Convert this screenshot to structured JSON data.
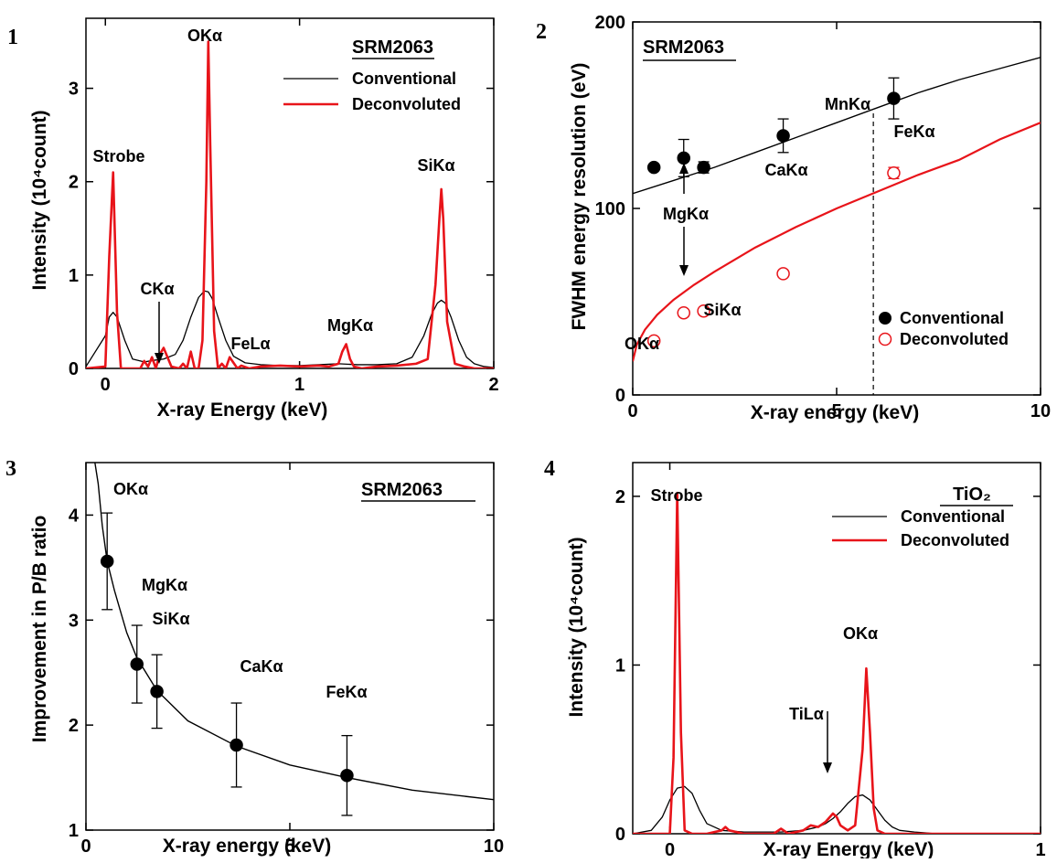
{
  "colors": {
    "conventional": "#000000",
    "deconvoluted": "#e8141a"
  },
  "chart_data": [
    {
      "panel_label": "1",
      "type": "line",
      "sample_title": "SRM2063",
      "xlabel": "X-ray Energy (keV)",
      "ylabel": "Intensity (10⁴count)",
      "xlim": [
        -0.1,
        2.0
      ],
      "ylim": [
        0,
        3.75
      ],
      "xticks": [
        0,
        1,
        2
      ],
      "yticks": [
        0,
        1,
        2,
        3
      ],
      "grid": false,
      "legend": {
        "placement": "top-right",
        "entries": [
          "Conventional",
          "Deconvoluted"
        ]
      },
      "series": [
        {
          "name": "Conventional",
          "x": [
            -0.1,
            0.0,
            0.02,
            0.04,
            0.06,
            0.1,
            0.14,
            0.2,
            0.26,
            0.3,
            0.36,
            0.4,
            0.44,
            0.48,
            0.51,
            0.53,
            0.55,
            0.58,
            0.62,
            0.66,
            0.72,
            0.8,
            0.9,
            1.0,
            1.1,
            1.2,
            1.3,
            1.4,
            1.5,
            1.58,
            1.64,
            1.68,
            1.71,
            1.73,
            1.75,
            1.78,
            1.82,
            1.86,
            1.9,
            1.95,
            2.0
          ],
          "y": [
            0.02,
            0.35,
            0.55,
            0.6,
            0.55,
            0.3,
            0.1,
            0.07,
            0.09,
            0.1,
            0.15,
            0.3,
            0.55,
            0.76,
            0.83,
            0.82,
            0.75,
            0.55,
            0.3,
            0.13,
            0.06,
            0.04,
            0.03,
            0.03,
            0.04,
            0.05,
            0.04,
            0.04,
            0.05,
            0.12,
            0.35,
            0.58,
            0.7,
            0.73,
            0.7,
            0.55,
            0.3,
            0.12,
            0.05,
            0.02,
            0.01
          ]
        },
        {
          "name": "Deconvoluted",
          "x": [
            -0.1,
            0.0,
            0.02,
            0.04,
            0.06,
            0.08,
            0.12,
            0.18,
            0.2,
            0.22,
            0.24,
            0.26,
            0.28,
            0.3,
            0.34,
            0.38,
            0.4,
            0.42,
            0.44,
            0.46,
            0.48,
            0.5,
            0.52,
            0.53,
            0.54,
            0.56,
            0.58,
            0.6,
            0.62,
            0.64,
            0.66,
            0.68,
            0.7,
            0.74,
            0.8,
            0.9,
            1.0,
            1.1,
            1.15,
            1.2,
            1.22,
            1.24,
            1.26,
            1.28,
            1.32,
            1.4,
            1.5,
            1.6,
            1.66,
            1.7,
            1.72,
            1.73,
            1.74,
            1.76,
            1.8,
            1.85,
            1.9,
            2.0
          ],
          "y": [
            0.0,
            0.02,
            1.2,
            2.1,
            0.6,
            0.0,
            0.0,
            0.0,
            0.08,
            0.02,
            0.12,
            0.0,
            0.15,
            0.22,
            0.02,
            0.0,
            0.05,
            0.0,
            0.18,
            0.0,
            0.0,
            0.3,
            2.0,
            3.5,
            2.4,
            0.4,
            0.0,
            0.05,
            0.0,
            0.12,
            0.06,
            0.0,
            0.03,
            0.0,
            0.02,
            0.03,
            0.02,
            0.03,
            0.02,
            0.05,
            0.18,
            0.26,
            0.1,
            0.02,
            0.0,
            0.02,
            0.03,
            0.05,
            0.1,
            0.9,
            1.6,
            1.92,
            1.6,
            0.5,
            0.05,
            0.02,
            0.0,
            0.0
          ]
        }
      ],
      "annotations": [
        "Strobe",
        "OKα",
        "CKα",
        "FeLα",
        "MgKα",
        "SiKα"
      ]
    },
    {
      "panel_label": "2",
      "type": "scatter",
      "sample_title": "SRM2063",
      "xlabel": "X-ray energy (keV)",
      "ylabel": "FWHM energy resolution (eV)",
      "xlim": [
        0,
        10
      ],
      "ylim": [
        0,
        200
      ],
      "xticks": [
        0,
        5,
        10
      ],
      "yticks": [
        0,
        100,
        200
      ],
      "grid": false,
      "legend": {
        "placement": "bottom-right",
        "entries": [
          "Conventional",
          "Deconvoluted"
        ]
      },
      "series": [
        {
          "name": "Conventional",
          "marker": "filled-circle",
          "x": [
            0.52,
            1.25,
            1.74,
            3.69,
            6.4
          ],
          "y": [
            122,
            127,
            122,
            139,
            159
          ],
          "yerr": [
            0,
            10,
            3,
            9,
            11
          ]
        },
        {
          "name": "Deconvoluted",
          "marker": "open-circle",
          "x": [
            0.52,
            1.25,
            1.74,
            3.69,
            6.4
          ],
          "y": [
            29,
            44,
            45,
            65,
            119
          ],
          "yerr": [
            0,
            0,
            0,
            0,
            3
          ]
        }
      ],
      "fit_lines": [
        {
          "series": "Conventional",
          "x": [
            0,
            1,
            2,
            3,
            4,
            5,
            6,
            7,
            8,
            9,
            10
          ],
          "y": [
            108,
            115,
            122,
            130,
            138,
            146,
            154,
            162,
            169,
            175,
            181
          ]
        },
        {
          "series": "Deconvoluted",
          "x": [
            0,
            0.1,
            0.3,
            0.6,
            1,
            1.5,
            2,
            3,
            4,
            5,
            6,
            7,
            8,
            9,
            10
          ],
          "y": [
            18,
            27,
            35,
            43,
            51,
            59,
            66,
            79,
            90,
            100,
            109,
            118,
            126,
            137,
            146
          ]
        }
      ],
      "reference_line": {
        "x": 5.9,
        "label": "MnKα"
      },
      "annotations": [
        "MgKα",
        "CaKα",
        "FeKα",
        "SiKα",
        "OKα"
      ]
    },
    {
      "panel_label": "3",
      "type": "scatter",
      "sample_title": "SRM2063",
      "xlabel": "X-ray energy (keV)",
      "ylabel": "Improvement in P/B ratio",
      "xlim": [
        0,
        10
      ],
      "ylim": [
        1,
        4.5
      ],
      "xticks": [
        0,
        5,
        10
      ],
      "yticks": [
        1,
        2,
        3,
        4
      ],
      "grid": false,
      "series": [
        {
          "name": "",
          "marker": "filled-circle",
          "x": [
            0.52,
            1.25,
            1.74,
            3.69,
            6.4
          ],
          "y": [
            3.56,
            2.58,
            2.32,
            1.81,
            1.52
          ],
          "yerr": [
            0.46,
            0.37,
            0.35,
            0.4,
            0.38
          ]
        }
      ],
      "fit_lines": [
        {
          "series": "fit",
          "x": [
            0.22,
            0.3,
            0.4,
            0.52,
            0.7,
            1,
            1.25,
            1.74,
            2.5,
            3.69,
            5,
            6.4,
            8,
            10
          ],
          "y": [
            4.5,
            4.3,
            3.9,
            3.56,
            3.28,
            2.88,
            2.64,
            2.33,
            2.04,
            1.8,
            1.62,
            1.5,
            1.38,
            1.29
          ]
        }
      ],
      "annotations": [
        "OKα",
        "MgKα",
        "SiKα",
        "CaKα",
        "FeKα"
      ]
    },
    {
      "panel_label": "4",
      "type": "line",
      "sample_title": "TiO₂",
      "xlabel": "X-ray Energy (keV)",
      "ylabel": "Intensity (10⁴count)",
      "xlim": [
        -0.1,
        1.0
      ],
      "ylim": [
        0,
        2.2
      ],
      "xticks": [
        0,
        1
      ],
      "yticks": [
        0,
        1,
        2
      ],
      "grid": false,
      "legend": {
        "placement": "top-right",
        "entries": [
          "Conventional",
          "Deconvoluted"
        ]
      },
      "series": [
        {
          "name": "Conventional",
          "x": [
            -0.1,
            -0.05,
            -0.02,
            0.0,
            0.02,
            0.04,
            0.06,
            0.08,
            0.1,
            0.14,
            0.2,
            0.3,
            0.36,
            0.4,
            0.42,
            0.44,
            0.46,
            0.48,
            0.5,
            0.52,
            0.54,
            0.56,
            0.58,
            0.6,
            0.62,
            0.66,
            0.72,
            0.8,
            0.9,
            1.0
          ],
          "y": [
            0.0,
            0.02,
            0.1,
            0.2,
            0.27,
            0.28,
            0.24,
            0.14,
            0.06,
            0.02,
            0.01,
            0.01,
            0.02,
            0.04,
            0.06,
            0.09,
            0.13,
            0.18,
            0.22,
            0.23,
            0.2,
            0.14,
            0.08,
            0.04,
            0.02,
            0.01,
            0.0,
            0.0,
            0.0,
            0.0
          ]
        },
        {
          "name": "Deconvoluted",
          "x": [
            -0.1,
            0.0,
            0.01,
            0.02,
            0.03,
            0.04,
            0.06,
            0.1,
            0.14,
            0.15,
            0.16,
            0.2,
            0.28,
            0.3,
            0.32,
            0.36,
            0.38,
            0.4,
            0.42,
            0.44,
            0.45,
            0.46,
            0.48,
            0.5,
            0.52,
            0.53,
            0.54,
            0.55,
            0.56,
            0.58,
            0.62,
            0.7,
            0.8,
            1.0
          ],
          "y": [
            0.0,
            0.0,
            0.45,
            2.02,
            0.6,
            0.02,
            0.0,
            0.0,
            0.02,
            0.04,
            0.02,
            0.0,
            0.0,
            0.03,
            0.0,
            0.02,
            0.05,
            0.04,
            0.07,
            0.12,
            0.1,
            0.05,
            0.02,
            0.05,
            0.5,
            0.98,
            0.6,
            0.15,
            0.02,
            0.0,
            0.0,
            0.0,
            0.0,
            0.0
          ]
        }
      ],
      "annotations": [
        "Strobe",
        "TiLα",
        "OKα"
      ]
    }
  ]
}
